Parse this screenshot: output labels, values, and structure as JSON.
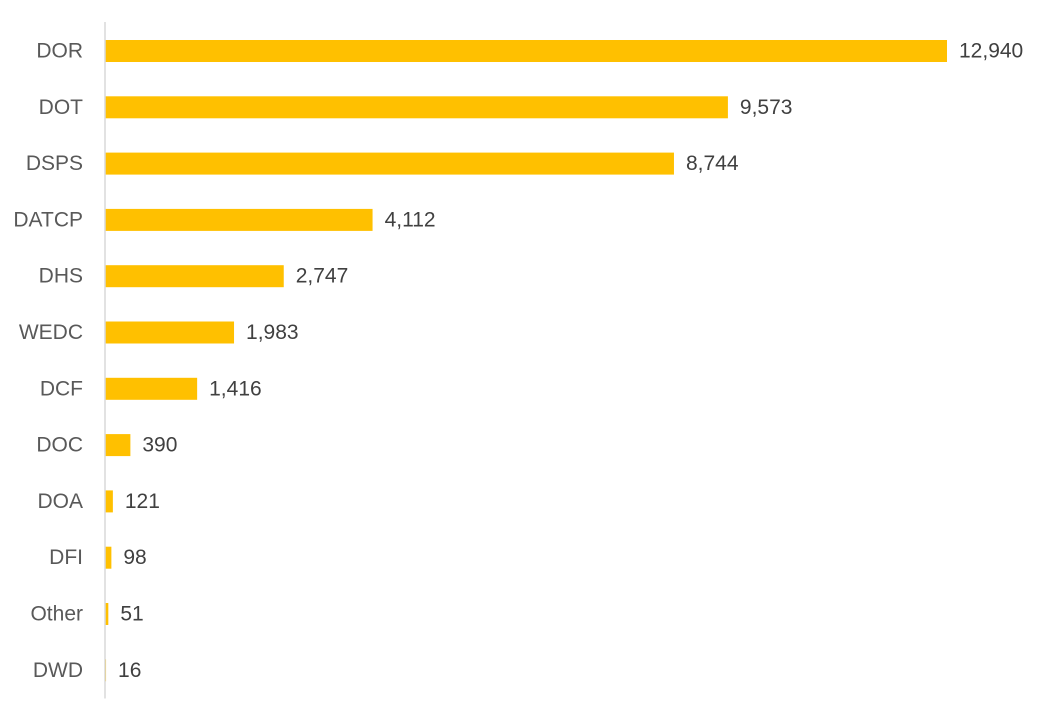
{
  "chart_data": {
    "type": "bar",
    "orientation": "horizontal",
    "categories": [
      "DOR",
      "DOT",
      "DSPS",
      "DATCP",
      "DHS",
      "WEDC",
      "DCF",
      "DOC",
      "DOA",
      "DFI",
      "Other",
      "DWD"
    ],
    "values": [
      12940,
      9573,
      8744,
      4112,
      2747,
      1983,
      1416,
      390,
      121,
      98,
      51,
      16
    ],
    "value_labels": [
      "12,940",
      "9,573",
      "8,744",
      "4,112",
      "2,747",
      "1,983",
      "1,416",
      "390",
      "121",
      "98",
      "51",
      "16"
    ],
    "title": "",
    "xlabel": "",
    "ylabel": "",
    "xlim": [
      0,
      12940
    ],
    "grid": false,
    "legend": "none",
    "data_labels": "outside-end"
  },
  "colors": {
    "bar": "#FFC000",
    "axis_line": "#D9D9D9",
    "category_text": "#595959",
    "value_text": "#404040",
    "background": "#FFFFFF"
  }
}
